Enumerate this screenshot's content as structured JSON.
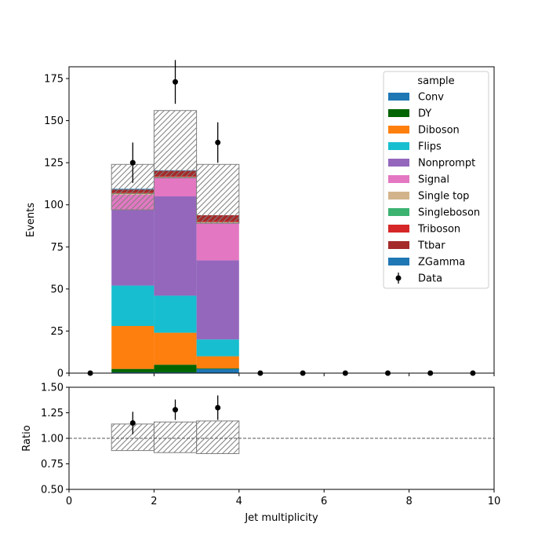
{
  "chart_data": [
    {
      "type": "bar",
      "stacked": true,
      "xlabel": "",
      "ylabel": "Events",
      "xlim": [
        0,
        10
      ],
      "ylim": [
        0,
        182
      ],
      "yticks": [
        0,
        25,
        50,
        75,
        100,
        125,
        150,
        175
      ],
      "bins": [
        [
          1,
          2
        ],
        [
          2,
          3
        ],
        [
          3,
          4
        ]
      ],
      "series": [
        {
          "name": "Conv",
          "color": "#1f77b4",
          "values": [
            0.5,
            0.5,
            2.5
          ]
        },
        {
          "name": "DY",
          "color": "#006400",
          "values": [
            2,
            4.5,
            0.3
          ]
        },
        {
          "name": "Diboson",
          "color": "#ff7f0e",
          "values": [
            25.5,
            19,
            7.2
          ]
        },
        {
          "name": "Flips",
          "color": "#17becf",
          "values": [
            24,
            22,
            10
          ]
        },
        {
          "name": "Nonprompt",
          "color": "#9467bd",
          "values": [
            45,
            59,
            47
          ]
        },
        {
          "name": "Signal",
          "color": "#e377c2",
          "values": [
            9,
            11,
            22
          ]
        },
        {
          "name": "Single top",
          "color": "#d2b48c",
          "values": [
            0.4,
            0.3,
            0.5
          ]
        },
        {
          "name": "Singleboson",
          "color": "#3cb371",
          "values": [
            0.3,
            0.2,
            0.2
          ]
        },
        {
          "name": "Triboson",
          "color": "#d62728",
          "values": [
            0.5,
            0.6,
            0.6
          ]
        },
        {
          "name": "Ttbar",
          "color": "#a52a2a",
          "values": [
            1.8,
            3.1,
            3.5
          ]
        },
        {
          "name": "ZGamma",
          "color": "#1f77b4",
          "values": [
            0.5,
            0.3,
            0
          ]
        }
      ],
      "uncertainty_band": {
        "low": [
          97,
          116,
          89
        ],
        "high": [
          124,
          156,
          124
        ]
      },
      "data": {
        "name": "Data",
        "x": [
          0.5,
          1.5,
          2.5,
          3.5,
          4.5,
          5.5,
          6.5,
          7.5,
          8.5,
          9.5
        ],
        "y": [
          0,
          125,
          173,
          137,
          0,
          0,
          0,
          0,
          0,
          0
        ],
        "yerr": [
          0,
          12,
          13,
          12,
          0,
          0,
          0,
          0,
          0,
          0
        ]
      },
      "legend": {
        "title": "sample",
        "placement": "top-right"
      }
    },
    {
      "type": "scatter",
      "xlabel": "Jet multiplicity",
      "ylabel": "Ratio",
      "xlim": [
        0,
        10
      ],
      "ylim": [
        0.5,
        1.5
      ],
      "xticks": [
        0,
        2,
        4,
        6,
        8,
        10
      ],
      "yticks": [
        0.5,
        0.75,
        1.0,
        1.25,
        1.5
      ],
      "ytick_labels": [
        "0.50",
        "0.75",
        "1.00",
        "1.25",
        "1.50"
      ],
      "reference_line": 1.0,
      "uncertainty_band": {
        "bins": [
          [
            1,
            2
          ],
          [
            2,
            3
          ],
          [
            3,
            4
          ]
        ],
        "low": [
          0.88,
          0.86,
          0.85
        ],
        "high": [
          1.14,
          1.16,
          1.17
        ]
      },
      "points": {
        "x": [
          1.5,
          2.5,
          3.5
        ],
        "y": [
          1.15,
          1.28,
          1.3
        ],
        "yerr": [
          0.11,
          0.1,
          0.12
        ]
      }
    }
  ]
}
